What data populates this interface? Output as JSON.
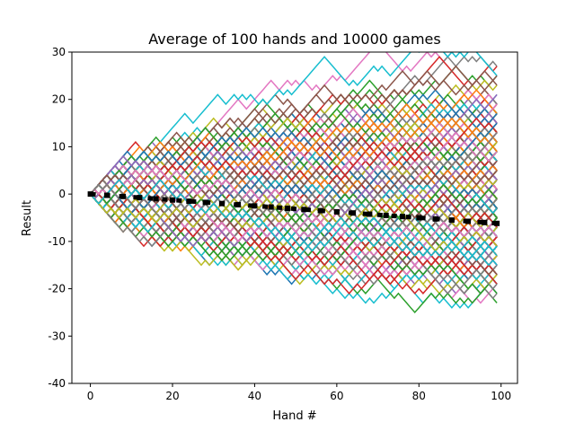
{
  "chart_data": {
    "type": "line",
    "title": "Average of 100 hands and 10000 games",
    "xlabel": "Hand #",
    "ylabel": "Result",
    "xlim": [
      -4.5,
      104
    ],
    "ylim": [
      -40,
      30
    ],
    "xticks": [
      0,
      20,
      40,
      60,
      80,
      100
    ],
    "yticks": [
      -40,
      -30,
      -20,
      -10,
      0,
      10,
      20,
      30
    ],
    "grid": false,
    "legend": "none",
    "n_hands": 100,
    "n_games": 10000,
    "series_colors": [
      "#1f77b4",
      "#ff7f0e",
      "#2ca02c",
      "#d62728",
      "#9467bd",
      "#8c564b",
      "#e377c2",
      "#7f7f7f",
      "#bcbd22",
      "#17becf"
    ],
    "average_series": {
      "color": "#000000",
      "style": "dotted",
      "x": [
        0,
        4,
        8,
        12,
        16,
        20,
        24,
        28,
        32,
        36,
        40,
        44,
        48,
        52,
        56,
        60,
        64,
        68,
        72,
        76,
        80,
        84,
        88,
        92,
        96,
        99
      ],
      "y": [
        0,
        -0.25,
        -0.5,
        -0.75,
        -1.0,
        -1.25,
        -1.5,
        -1.75,
        -2.0,
        -2.25,
        -2.5,
        -2.75,
        -3.0,
        -3.25,
        -3.5,
        -3.75,
        -4.0,
        -4.25,
        -4.5,
        -4.75,
        -5.0,
        -5.25,
        -5.5,
        -5.75,
        -6.0,
        -6.2
      ]
    }
  }
}
